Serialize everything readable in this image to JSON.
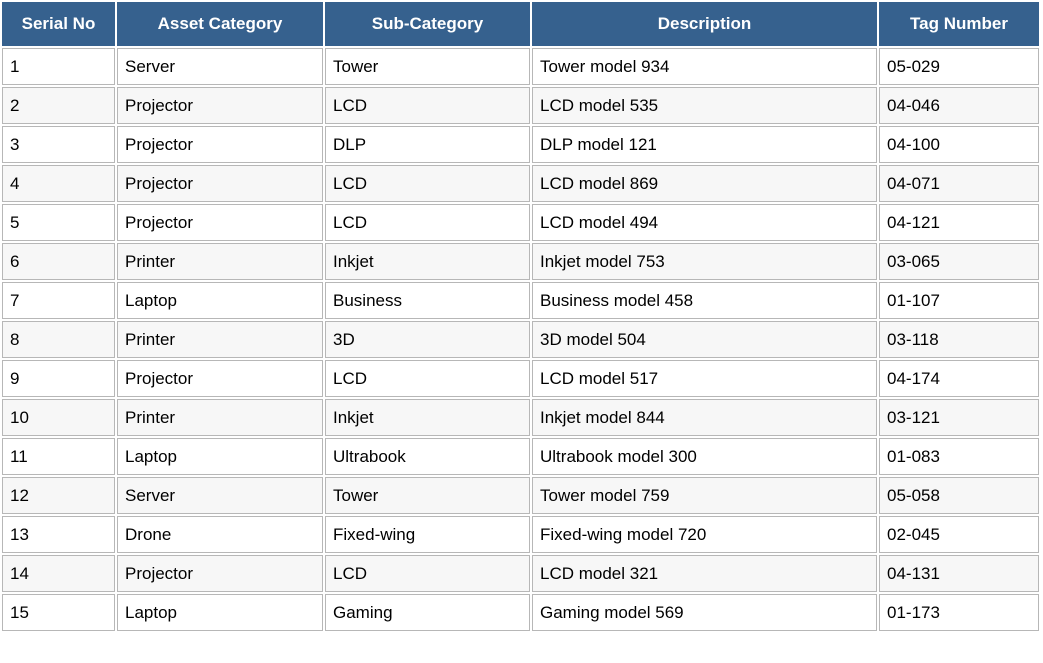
{
  "table": {
    "columns": [
      {
        "key": "serial",
        "label": "Serial No"
      },
      {
        "key": "category",
        "label": "Asset Category"
      },
      {
        "key": "sub_category",
        "label": "Sub-Category"
      },
      {
        "key": "description",
        "label": "Description"
      },
      {
        "key": "tag",
        "label": "Tag Number"
      }
    ],
    "rows": [
      {
        "serial": "1",
        "category": "Server",
        "sub_category": "Tower",
        "description": "Tower model 934",
        "tag": "05-029"
      },
      {
        "serial": "2",
        "category": "Projector",
        "sub_category": "LCD",
        "description": "LCD model 535",
        "tag": "04-046"
      },
      {
        "serial": "3",
        "category": "Projector",
        "sub_category": "DLP",
        "description": "DLP model 121",
        "tag": "04-100"
      },
      {
        "serial": "4",
        "category": "Projector",
        "sub_category": "LCD",
        "description": "LCD model 869",
        "tag": "04-071"
      },
      {
        "serial": "5",
        "category": "Projector",
        "sub_category": "LCD",
        "description": "LCD model 494",
        "tag": "04-121"
      },
      {
        "serial": "6",
        "category": "Printer",
        "sub_category": "Inkjet",
        "description": "Inkjet model 753",
        "tag": "03-065"
      },
      {
        "serial": "7",
        "category": "Laptop",
        "sub_category": "Business",
        "description": "Business model 458",
        "tag": "01-107"
      },
      {
        "serial": "8",
        "category": "Printer",
        "sub_category": "3D",
        "description": "3D model 504",
        "tag": "03-118"
      },
      {
        "serial": "9",
        "category": "Projector",
        "sub_category": "LCD",
        "description": "LCD model 517",
        "tag": "04-174"
      },
      {
        "serial": "10",
        "category": "Printer",
        "sub_category": "Inkjet",
        "description": "Inkjet model 844",
        "tag": "03-121"
      },
      {
        "serial": "11",
        "category": "Laptop",
        "sub_category": "Ultrabook",
        "description": "Ultrabook model 300",
        "tag": "01-083"
      },
      {
        "serial": "12",
        "category": "Server",
        "sub_category": "Tower",
        "description": "Tower model 759",
        "tag": "05-058"
      },
      {
        "serial": "13",
        "category": "Drone",
        "sub_category": "Fixed-wing",
        "description": "Fixed-wing model 720",
        "tag": "02-045"
      },
      {
        "serial": "14",
        "category": "Projector",
        "sub_category": "LCD",
        "description": "LCD model 321",
        "tag": "04-131"
      },
      {
        "serial": "15",
        "category": "Laptop",
        "sub_category": "Gaming",
        "description": "Gaming model 569",
        "tag": "01-173"
      }
    ]
  },
  "colors": {
    "header_bg": "#36618e",
    "header_text": "#ffffff",
    "row_bg": "#ffffff",
    "alt_row_bg": "#f7f7f7",
    "border": "#b7b7b7"
  }
}
